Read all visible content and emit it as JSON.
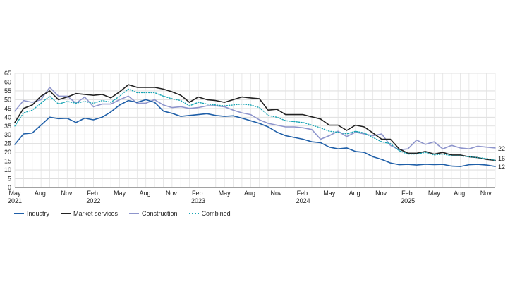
{
  "chart_data": {
    "type": "line",
    "title": "",
    "xlabel": "",
    "ylabel": "",
    "ylim": [
      0,
      65
    ],
    "yticks": [
      0,
      5,
      10,
      15,
      20,
      25,
      30,
      35,
      40,
      45,
      50,
      55,
      60,
      65
    ],
    "x": [
      "2021-05",
      "2021-06",
      "2021-07",
      "2021-08",
      "2021-09",
      "2021-10",
      "2021-11",
      "2021-12",
      "2022-01",
      "2022-02",
      "2022-03",
      "2022-04",
      "2022-05",
      "2022-06",
      "2022-07",
      "2022-08",
      "2022-09",
      "2022-10",
      "2022-11",
      "2022-12",
      "2023-01",
      "2023-02",
      "2023-03",
      "2023-04",
      "2023-05",
      "2023-06",
      "2023-07",
      "2023-08",
      "2023-09",
      "2023-10",
      "2023-11",
      "2023-12",
      "2024-01",
      "2024-02",
      "2024-03",
      "2024-04",
      "2024-05",
      "2024-06",
      "2024-07",
      "2024-08",
      "2024-09",
      "2024-10",
      "2024-11",
      "2024-12",
      "2025-01",
      "2025-02",
      "2025-03",
      "2025-04",
      "2025-05",
      "2025-06",
      "2025-07",
      "2025-08",
      "2025-09",
      "2025-10",
      "2025-11",
      "2025-12"
    ],
    "xtick_labels": [
      {
        "index": 0,
        "month": "May",
        "year": "2021"
      },
      {
        "index": 3,
        "month": "Aug.",
        "year": ""
      },
      {
        "index": 6,
        "month": "Nov.",
        "year": ""
      },
      {
        "index": 9,
        "month": "Feb.",
        "year": "2022"
      },
      {
        "index": 12,
        "month": "May",
        "year": ""
      },
      {
        "index": 15,
        "month": "Aug.",
        "year": ""
      },
      {
        "index": 18,
        "month": "Nov.",
        "year": ""
      },
      {
        "index": 21,
        "month": "Feb.",
        "year": "2023"
      },
      {
        "index": 24,
        "month": "May",
        "year": ""
      },
      {
        "index": 27,
        "month": "Aug.",
        "year": ""
      },
      {
        "index": 30,
        "month": "Nov.",
        "year": ""
      },
      {
        "index": 33,
        "month": "Feb.",
        "year": "2024"
      },
      {
        "index": 36,
        "month": "May",
        "year": ""
      },
      {
        "index": 39,
        "month": "Aug.",
        "year": ""
      },
      {
        "index": 42,
        "month": "Nov.",
        "year": ""
      },
      {
        "index": 45,
        "month": "Feb.",
        "year": "2025"
      },
      {
        "index": 48,
        "month": "May",
        "year": ""
      },
      {
        "index": 51,
        "month": "Aug.",
        "year": ""
      },
      {
        "index": 54,
        "month": "Nov.",
        "year": ""
      }
    ],
    "series": [
      {
        "name": "Industry",
        "color": "#1f5fa8",
        "style": "solid",
        "values": [
          24.5,
          30.5,
          31,
          35.5,
          40,
          39.2,
          39.4,
          37,
          39.5,
          38.5,
          40,
          43,
          47,
          49.5,
          48.5,
          50,
          48.5,
          43.5,
          42.2,
          40.5,
          41,
          41.5,
          42,
          41,
          40.5,
          40.8,
          39.5,
          38,
          36.5,
          34.5,
          31.5,
          29.5,
          28.5,
          27.5,
          26,
          25.5,
          23,
          22,
          22.5,
          20.5,
          20,
          17.5,
          16,
          14,
          13,
          13.2,
          12.8,
          13.3,
          13.1,
          13.2,
          12.2,
          12,
          13,
          13.2,
          12.8,
          12
        ]
      },
      {
        "name": "Market services",
        "color": "#222222",
        "style": "solid",
        "values": [
          37,
          45,
          47,
          52,
          55,
          50,
          51.5,
          53.5,
          53,
          52.5,
          53,
          51,
          54.5,
          58.5,
          57,
          57,
          57,
          56,
          54.5,
          52.5,
          48.5,
          51.5,
          50,
          49.5,
          48.5,
          50,
          51.5,
          51,
          50.5,
          44,
          44.5,
          41.5,
          41.5,
          41.5,
          40.2,
          39,
          35.5,
          35.5,
          32.5,
          35.5,
          34.5,
          31,
          27.5,
          27.5,
          22,
          19.5,
          19.5,
          20.5,
          19,
          20,
          18.5,
          18.5,
          17.5,
          17,
          16,
          15.5
        ]
      },
      {
        "name": "Construction",
        "color": "#8e95cc",
        "style": "solid",
        "values": [
          43.5,
          49.5,
          48.5,
          50,
          57,
          52,
          52,
          48,
          51.5,
          46,
          47.5,
          47.5,
          50,
          52,
          48,
          48,
          50,
          47,
          45.5,
          46,
          45,
          45.5,
          46.5,
          46.5,
          46,
          44,
          42.5,
          41.5,
          38.5,
          36.5,
          35.5,
          34.5,
          34.5,
          34,
          33,
          27.5,
          29.5,
          32,
          29,
          31.5,
          30.5,
          29.5,
          30.5,
          24,
          21.5,
          22,
          27,
          24.5,
          26,
          22,
          24,
          22.5,
          22,
          23.5,
          23,
          22.5
        ]
      },
      {
        "name": "Combined",
        "color": "#16a4b4",
        "style": "dotted",
        "values": [
          35,
          42.5,
          44,
          48,
          52,
          47.5,
          49,
          48,
          49,
          48,
          49.5,
          48.5,
          52,
          56,
          54,
          54,
          54,
          52,
          50.5,
          49.5,
          46.5,
          48.5,
          47.5,
          47,
          46.5,
          47,
          47.5,
          47,
          45.5,
          41,
          40,
          38,
          37.5,
          37,
          35.5,
          34,
          32,
          31.5,
          30.5,
          32,
          31,
          28.5,
          26,
          25,
          21,
          19,
          19,
          20,
          18.5,
          19,
          18,
          18,
          17.5,
          17,
          16.5,
          15.5
        ]
      }
    ],
    "end_labels": [
      "22",
      "16",
      "12"
    ],
    "legend_position": "bottom-left",
    "grid": {
      "horizontal": true,
      "vertical": true
    }
  }
}
